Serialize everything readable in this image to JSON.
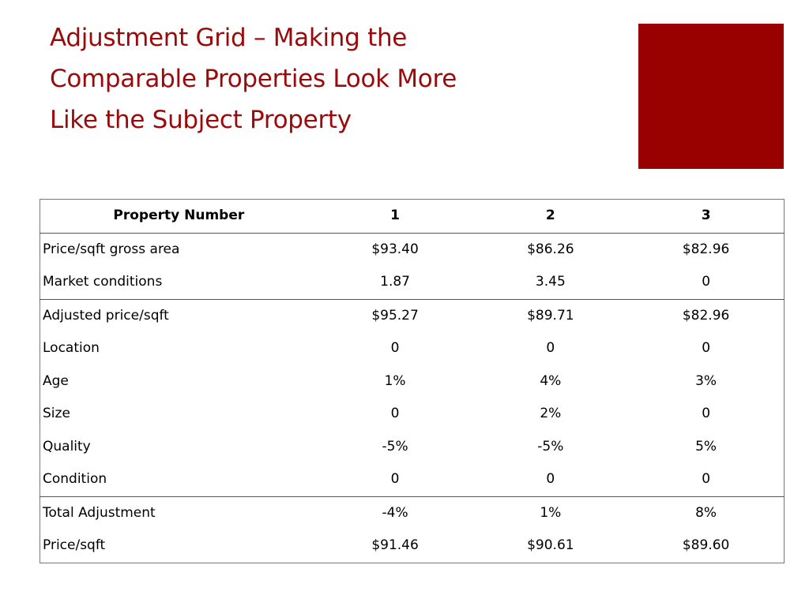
{
  "title": {
    "line1": "Adjustment Grid – Making the",
    "line2": "Comparable Properties Look More",
    "line3": "Like the Subject Property"
  },
  "colors": {
    "title": "#9b0a0a",
    "accent_box": "#990000"
  },
  "table": {
    "header": {
      "label": "Property Number",
      "columns": [
        "1",
        "2",
        "3"
      ]
    },
    "rows": [
      {
        "label": "Price/sqft gross area",
        "values": [
          "$93.40",
          "$86.26",
          "$82.96"
        ]
      },
      {
        "label": "Market conditions",
        "values": [
          "1.87",
          "3.45",
          "0"
        ]
      },
      {
        "label": "Adjusted price/sqft",
        "values": [
          "$95.27",
          "$89.71",
          "$82.96"
        ]
      },
      {
        "label": "Location",
        "values": [
          "0",
          "0",
          "0"
        ]
      },
      {
        "label": "Age",
        "values": [
          "1%",
          "4%",
          "3%"
        ]
      },
      {
        "label": "Size",
        "values": [
          "0",
          "2%",
          "0"
        ]
      },
      {
        "label": "Quality",
        "values": [
          "-5%",
          "-5%",
          "5%"
        ]
      },
      {
        "label": "Condition",
        "values": [
          "0",
          "0",
          "0"
        ]
      },
      {
        "label": "Total Adjustment",
        "values": [
          "-4%",
          "1%",
          "8%"
        ]
      },
      {
        "label": "Price/sqft",
        "values": [
          "$91.46",
          "$90.61",
          "$89.60"
        ]
      }
    ]
  }
}
